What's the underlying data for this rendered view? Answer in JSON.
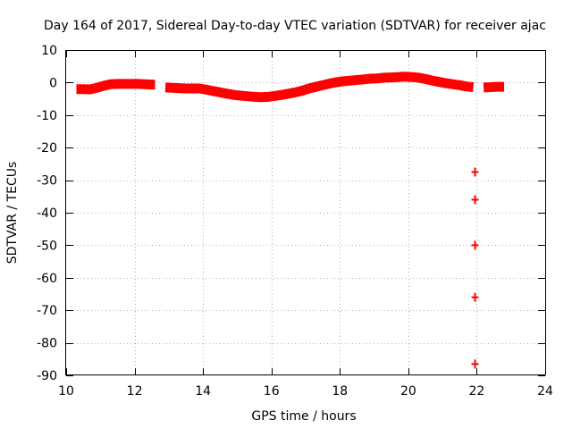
{
  "chart_data": {
    "type": "scatter",
    "title": "Day 164 of 2017, Sidereal Day-to-day VTEC variation (SDTVAR) for receiver ajac",
    "xlabel": "GPS time / hours",
    "ylabel": "SDTVAR / TECUs",
    "xlim": [
      10,
      24
    ],
    "ylim": [
      -90,
      10
    ],
    "x_ticks": [
      10,
      12,
      14,
      16,
      18,
      20,
      22,
      24
    ],
    "y_ticks": [
      10,
      0,
      -10,
      -20,
      -30,
      -40,
      -50,
      -60,
      -70,
      -80,
      -90
    ],
    "grid": true,
    "marker_color": "#ff0000",
    "series": [
      {
        "name": "SDTVAR",
        "segments": [
          {
            "x": [
              10.3,
              10.5,
              10.7,
              10.9,
              11.1,
              11.3,
              11.5,
              11.7,
              11.9,
              12.1,
              12.3,
              12.5,
              12.6
            ],
            "y": [
              -2.0,
              -2.0,
              -2.1,
              -1.6,
              -1.0,
              -0.5,
              -0.4,
              -0.4,
              -0.4,
              -0.4,
              -0.5,
              -0.6,
              -0.6
            ]
          },
          {
            "x": [
              12.9,
              13.1,
              13.3,
              13.5,
              13.7,
              13.9,
              14.1,
              14.3,
              14.5,
              14.7,
              14.9,
              15.1,
              15.3,
              15.5,
              15.7,
              15.9,
              16.1,
              16.3,
              16.5,
              16.7,
              16.9,
              17.1,
              17.3,
              17.5,
              17.7,
              17.9,
              18.1,
              18.3,
              18.5,
              18.7,
              18.9,
              19.1,
              19.3,
              19.5,
              19.7,
              19.9,
              20.1,
              20.3,
              20.5,
              20.7,
              20.9,
              21.1,
              21.3,
              21.5,
              21.7,
              21.9
            ],
            "y": [
              -1.5,
              -1.6,
              -1.7,
              -1.8,
              -1.8,
              -1.8,
              -2.2,
              -2.6,
              -3.0,
              -3.4,
              -3.8,
              -4.0,
              -4.2,
              -4.4,
              -4.5,
              -4.4,
              -4.1,
              -3.8,
              -3.4,
              -3.0,
              -2.5,
              -1.8,
              -1.3,
              -0.8,
              -0.3,
              0.1,
              0.4,
              0.6,
              0.8,
              1.0,
              1.2,
              1.3,
              1.5,
              1.6,
              1.7,
              1.8,
              1.7,
              1.5,
              1.1,
              0.6,
              0.2,
              -0.2,
              -0.5,
              -0.8,
              -1.2,
              -1.4
            ]
          },
          {
            "x": [
              22.2,
              22.4,
              22.6,
              22.8
            ],
            "y": [
              -1.5,
              -1.4,
              -1.3,
              -1.3
            ]
          }
        ],
        "outliers": {
          "x": [
            21.95,
            21.95,
            21.95,
            21.95,
            21.95
          ],
          "y": [
            -27.5,
            -36.0,
            -50.0,
            -66.0,
            -86.5
          ]
        }
      }
    ]
  }
}
